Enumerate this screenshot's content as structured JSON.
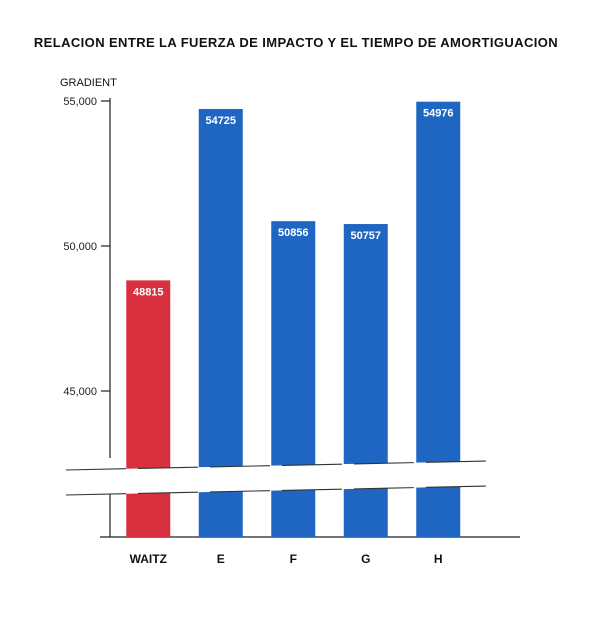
{
  "chart_data": {
    "type": "bar",
    "title": "RELACION ENTRE LA FUERZA DE IMPACTO Y EL TIEMPO DE AMORTIGUACION",
    "ylabel": "GRADIENT",
    "xlabel": "",
    "categories": [
      "WAITZ",
      "E",
      "F",
      "G",
      "H"
    ],
    "values": [
      48815,
      54725,
      50856,
      50757,
      54976
    ],
    "value_labels": [
      "48815",
      "54725",
      "50856",
      "50757",
      "54976"
    ],
    "bar_colors": [
      "#d93040",
      "#1f66c2",
      "#1f66c2",
      "#1f66c2",
      "#1f66c2"
    ],
    "ylim": [
      45000,
      55000
    ],
    "yticks": [
      55000,
      50000,
      45000
    ],
    "ytick_labels": [
      "55,000",
      "50,000",
      "45,000"
    ],
    "axis_break": true,
    "grid": false,
    "legend": "none"
  }
}
